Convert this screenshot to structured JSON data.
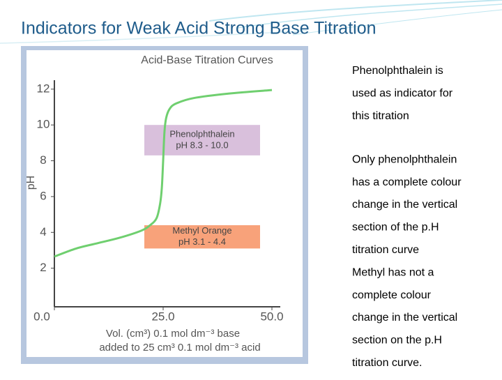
{
  "title": "Indicators for Weak Acid Strong Base Titration",
  "body_lines": [
    "Phenolphthalein is",
    "used as indicator for",
    "this titration",
    "Only phenolphthalein",
    "has a complete colour",
    "change in the vertical",
    "section of the p.H",
    "titration curve",
    "Methyl has not a",
    "complete colour",
    "change in the vertical",
    "section on the p.H",
    "titration curve."
  ],
  "chart_data": {
    "type": "line",
    "title": "Acid-Base Titration Curves",
    "y_label": "pH",
    "x_label_lines": [
      "Vol. (cm³) 0.1 mol dm⁻³  base",
      "added to 25 cm³ 0.1 mol dm⁻³  acid"
    ],
    "x": [
      0,
      5,
      10,
      15,
      20,
      22,
      23.5,
      24.3,
      24.7,
      25,
      25.3,
      25.7,
      26.5,
      28,
      32,
      40,
      50
    ],
    "values": [
      2.65,
      3.1,
      3.4,
      3.7,
      4.1,
      4.4,
      4.8,
      5.6,
      6.5,
      8,
      9.6,
      10.4,
      10.9,
      11.2,
      11.5,
      11.75,
      11.95
    ],
    "color": "#6fcf6f",
    "xlim": [
      0,
      50
    ],
    "ylim": [
      0,
      12.5
    ],
    "xticks": [
      {
        "value": 0,
        "label": "0.0"
      },
      {
        "value": 25,
        "label": "25.0"
      },
      {
        "value": 50,
        "label": "50.0"
      }
    ],
    "yticks": [
      2,
      4,
      6,
      8,
      10,
      12
    ],
    "indicators": [
      {
        "name": "Phenolphthalein",
        "range_label": "pH 8.3 - 10.0",
        "low": 8.3,
        "high": 10.0,
        "color": "#d9c0dc"
      },
      {
        "name": "Methyl Orange",
        "range_label": "pH 3.1 - 4.4",
        "low": 3.1,
        "high": 4.4,
        "color": "#f8a27a"
      }
    ]
  }
}
